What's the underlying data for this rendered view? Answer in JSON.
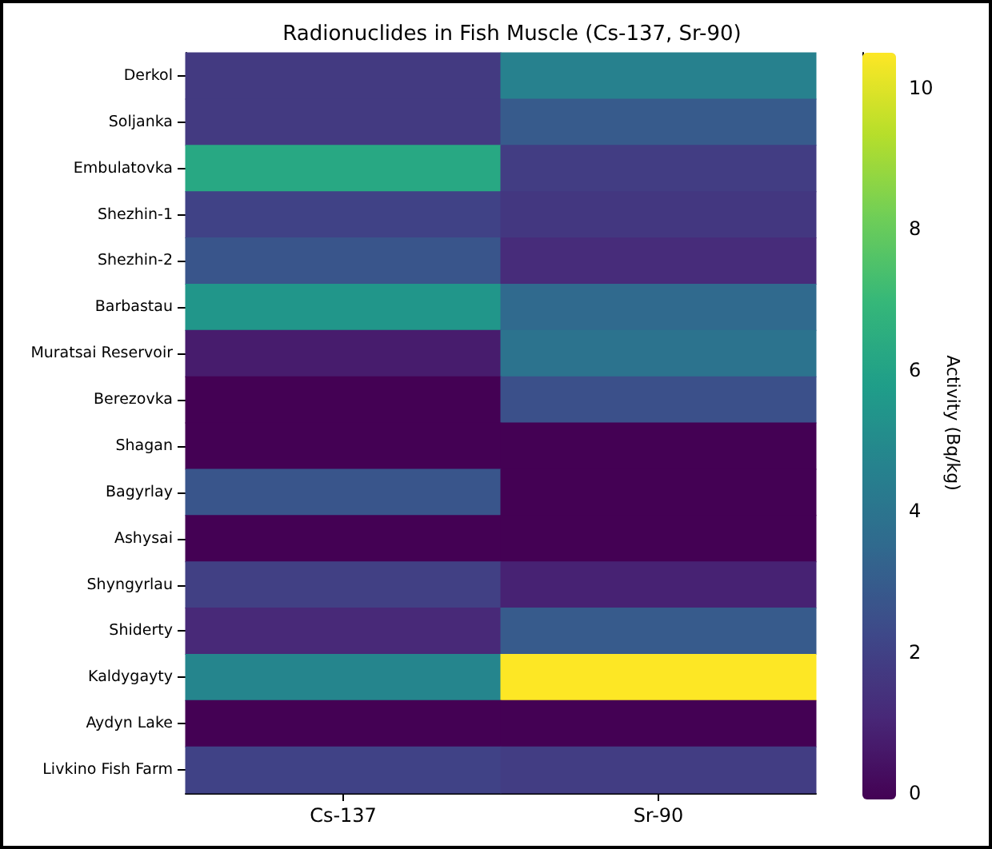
{
  "chart_data": {
    "type": "heatmap",
    "title": "Radionuclides in Fish Muscle (Cs-137, Sr-90)",
    "clabel": "Activity (Bq/kg)",
    "categories": [
      "Cs-137",
      "Sr-90"
    ],
    "y_categories": [
      "Derkol",
      "Soljanka",
      "Embulatovka",
      "Shezhin-1",
      "Shezhin-2",
      "Barbastau",
      "Muratsai Reservoir",
      "Berezovka",
      "Shagan",
      "Bagyrlay",
      "Ashysai",
      "Shyngyrlau",
      "Shiderty",
      "Kaldygayty",
      "Aydyn Lake",
      "Livkino Fish Farm"
    ],
    "cells": [
      [
        1.8,
        4.6
      ],
      [
        1.8,
        3.0
      ],
      [
        6.3,
        1.9
      ],
      [
        2.1,
        1.7
      ],
      [
        2.8,
        1.3
      ],
      [
        5.5,
        3.6
      ],
      [
        0.8,
        4.0
      ],
      [
        0,
        2.6
      ],
      [
        0,
        0
      ],
      [
        2.8,
        0
      ],
      [
        0,
        0
      ],
      [
        2.0,
        1.0
      ],
      [
        1.2,
        3.0
      ],
      [
        4.8,
        10.5
      ],
      [
        0,
        0
      ],
      [
        2.1,
        1.9
      ]
    ],
    "clim": [
      0,
      10.5
    ],
    "cticks": [
      0,
      2,
      4,
      6,
      8,
      10
    ]
  }
}
